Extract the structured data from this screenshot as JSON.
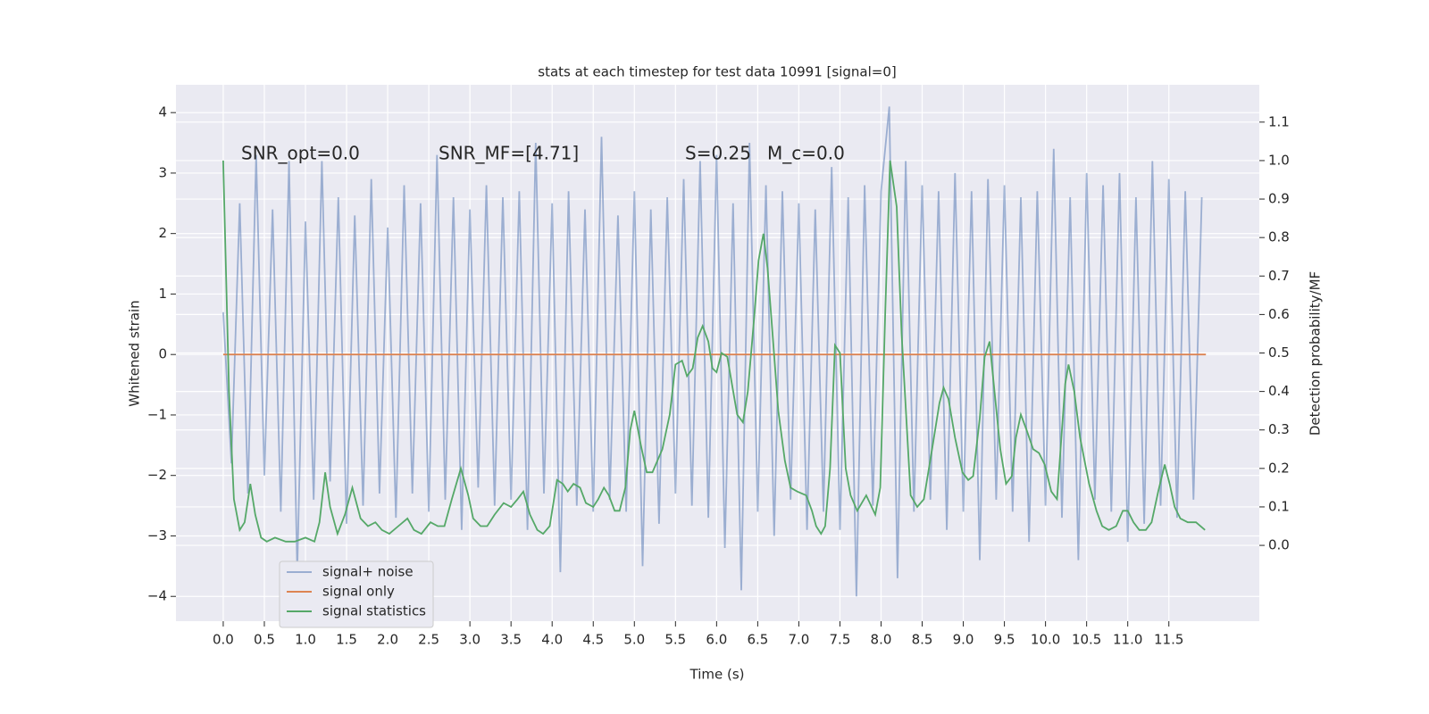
{
  "chart_data": {
    "type": "line",
    "title": "stats at each timestep for test data 10991 [signal=0]",
    "xlabel": "Time (s)",
    "ylabel": "Whitened strain",
    "y2label": "Detection probability/MF",
    "annotations": [
      "SNR_opt=0.0",
      "SNR_MF=[4.71]",
      "S=0.25",
      "M_c=0.0"
    ],
    "xlim": [
      -0.575,
      12.6
    ],
    "ylim": [
      -4.41,
      4.46
    ],
    "y2lim": [
      -0.197,
      1.197
    ],
    "xticks": [
      {
        "value": 0,
        "label": "0.0"
      },
      0.5,
      {
        "value": 1,
        "label": "1.0"
      },
      1.5,
      {
        "value": 2,
        "label": "2.0"
      },
      2.5,
      {
        "value": 3,
        "label": "3.0"
      },
      3.5,
      {
        "value": 4,
        "label": "4.0"
      },
      4.5,
      {
        "value": 5,
        "label": "5.0"
      },
      5.5,
      {
        "value": 6,
        "label": "6.0"
      },
      6.5,
      {
        "value": 7,
        "label": "7.0"
      },
      7.5,
      {
        "value": 8,
        "label": "8.0"
      },
      8.5,
      {
        "value": 9,
        "label": "9.0"
      },
      9.5,
      {
        "value": 10,
        "label": "10.0"
      },
      10.5,
      {
        "value": 11,
        "label": "11.0"
      },
      11.5
    ],
    "yticks": [
      {
        "value": -4,
        "label": "−4"
      },
      {
        "value": -3,
        "label": "−3"
      },
      {
        "value": -2,
        "label": "−2"
      },
      {
        "value": -1,
        "label": "−1"
      },
      0,
      1,
      2,
      3,
      4
    ],
    "y2ticks": [
      {
        "value": 0,
        "label": "0.0"
      },
      0.1,
      0.2,
      0.3,
      0.4,
      0.5,
      0.6,
      0.7,
      0.8,
      0.9,
      {
        "value": 1,
        "label": "1.0"
      },
      1.1
    ],
    "grid": true,
    "legend": "lower left",
    "series": [
      {
        "name": "signal+ noise",
        "color": "#4c72b0",
        "opacity": 0.5,
        "x": [
          0,
          0.1,
          0.2,
          0.3,
          0.4,
          0.5,
          0.6,
          0.7,
          0.8,
          0.9,
          1,
          1.1,
          1.2,
          1.3,
          1.4,
          1.5,
          1.6,
          1.7,
          1.8,
          1.9,
          2,
          2.1,
          2.2,
          2.3,
          2.4,
          2.5,
          2.6,
          2.7,
          2.8,
          2.9,
          3,
          3.1,
          3.2,
          3.3,
          3.4,
          3.5,
          3.6,
          3.7,
          3.8,
          3.9,
          4,
          4.1,
          4.2,
          4.3,
          4.4,
          4.5,
          4.6,
          4.7,
          4.8,
          4.9,
          5,
          5.1,
          5.2,
          5.3,
          5.4,
          5.5,
          5.6,
          5.7,
          5.8,
          5.9,
          6,
          6.1,
          6.2,
          6.3,
          6.4,
          6.5,
          6.6,
          6.7,
          6.8,
          6.9,
          7,
          7.1,
          7.2,
          7.3,
          7.4,
          7.5,
          7.6,
          7.7,
          7.8,
          7.9,
          8,
          8.1,
          8.2,
          8.3,
          8.4,
          8.5,
          8.6,
          8.7,
          8.8,
          8.9,
          9,
          9.1,
          9.2,
          9.3,
          9.4,
          9.5,
          9.6,
          9.7,
          9.8,
          9.9,
          10,
          10.1,
          10.2,
          10.3,
          10.4,
          10.5,
          10.6,
          10.7,
          10.8,
          10.9,
          11,
          11.1,
          11.2,
          11.3,
          11.4,
          11.5,
          11.6,
          11.7,
          11.8,
          11.9
        ],
        "values": [
          0.7,
          -1.8,
          2.5,
          -2.3,
          3.3,
          -2.0,
          2.4,
          -2.6,
          3.2,
          -3.6,
          2.2,
          -2.4,
          3.2,
          -2.1,
          2.6,
          -2.8,
          2.3,
          -2.5,
          2.9,
          -2.3,
          2.1,
          -2.7,
          2.8,
          -2.3,
          2.5,
          -2.6,
          3.3,
          -2.4,
          2.6,
          -2.9,
          2.4,
          -2.2,
          2.8,
          -2.5,
          2.6,
          -2.4,
          2.7,
          -2.9,
          3.5,
          -2.3,
          2.5,
          -3.6,
          2.7,
          -2.5,
          2.4,
          -2.6,
          3.6,
          -2.4,
          2.3,
          -2.6,
          2.7,
          -3.5,
          2.4,
          -2.8,
          2.6,
          -2.3,
          2.9,
          -2.5,
          3.2,
          -2.7,
          3.3,
          -3.2,
          2.5,
          -3.9,
          3.5,
          -2.6,
          2.8,
          -3.0,
          2.7,
          -2.4,
          2.5,
          -2.9,
          2.4,
          -2.6,
          3.1,
          -2.9,
          2.6,
          -4.0,
          2.8,
          -2.5,
          2.7,
          4.1,
          -3.7,
          3.2,
          -2.6,
          2.8,
          -2.4,
          2.7,
          -2.9,
          3.0,
          -2.6,
          2.7,
          -3.4,
          2.9,
          -2.4,
          2.8,
          -2.6,
          2.6,
          -3.1,
          2.7,
          -2.5,
          3.4,
          -2.7,
          2.6,
          -3.4,
          3.0,
          -2.4,
          2.8,
          -2.6,
          3.0,
          -3.1,
          2.6,
          -2.8,
          3.2,
          -2.5,
          2.9,
          -2.7,
          2.7,
          -2.4,
          2.6
        ]
      },
      {
        "name": "signal only",
        "color": "#dd8452",
        "x": [
          0,
          11.95
        ],
        "values": [
          0,
          0
        ]
      },
      {
        "name": "signal statistics",
        "color": "#55a868",
        "axis": "y2",
        "x": [
          0,
          0.07,
          0.13,
          0.2,
          0.26,
          0.33,
          0.39,
          0.46,
          0.53,
          0.63,
          0.76,
          0.87,
          1,
          1.11,
          1.17,
          1.24,
          1.3,
          1.39,
          1.48,
          1.57,
          1.67,
          1.76,
          1.85,
          1.93,
          2.02,
          2.13,
          2.24,
          2.32,
          2.41,
          2.52,
          2.61,
          2.69,
          2.78,
          2.89,
          2.98,
          3.04,
          3.13,
          3.21,
          3.3,
          3.41,
          3.5,
          3.58,
          3.65,
          3.73,
          3.82,
          3.89,
          3.97,
          4.06,
          4.13,
          4.19,
          4.26,
          4.34,
          4.41,
          4.5,
          4.56,
          4.63,
          4.69,
          4.76,
          4.82,
          4.89,
          4.95,
          5,
          5.08,
          5.15,
          5.22,
          5.34,
          5.43,
          5.5,
          5.58,
          5.64,
          5.71,
          5.77,
          5.83,
          5.9,
          5.95,
          6,
          6.06,
          6.13,
          6.25,
          6.32,
          6.38,
          6.46,
          6.51,
          6.57,
          6.62,
          6.68,
          6.75,
          6.83,
          6.9,
          6.98,
          7.09,
          7.16,
          7.21,
          7.27,
          7.32,
          7.38,
          7.44,
          7.5,
          7.57,
          7.63,
          7.71,
          7.82,
          7.93,
          7.99,
          8.05,
          8.11,
          8.19,
          8.25,
          8.36,
          8.44,
          8.52,
          8.62,
          8.71,
          8.76,
          8.82,
          8.9,
          8.99,
          9.06,
          9.12,
          9.2,
          9.26,
          9.32,
          9.38,
          9.45,
          9.52,
          9.59,
          9.64,
          9.7,
          9.77,
          9.85,
          9.92,
          9.99,
          10.07,
          10.14,
          10.2,
          10.24,
          10.28,
          10.35,
          10.42,
          10.53,
          10.62,
          10.69,
          10.77,
          10.86,
          10.94,
          11,
          11.07,
          11.14,
          11.22,
          11.29,
          11.37,
          11.45,
          11.51,
          11.57,
          11.64,
          11.73,
          11.83,
          11.94
        ],
        "values": [
          1.0,
          0.4,
          0.12,
          0.04,
          0.06,
          0.16,
          0.08,
          0.02,
          0.01,
          0.02,
          0.01,
          0.01,
          0.02,
          0.01,
          0.06,
          0.19,
          0.1,
          0.03,
          0.08,
          0.15,
          0.07,
          0.05,
          0.06,
          0.04,
          0.03,
          0.05,
          0.07,
          0.04,
          0.03,
          0.06,
          0.05,
          0.05,
          0.12,
          0.2,
          0.13,
          0.07,
          0.05,
          0.05,
          0.08,
          0.11,
          0.1,
          0.12,
          0.14,
          0.08,
          0.04,
          0.03,
          0.05,
          0.17,
          0.16,
          0.14,
          0.16,
          0.15,
          0.11,
          0.1,
          0.12,
          0.15,
          0.13,
          0.09,
          0.09,
          0.15,
          0.3,
          0.35,
          0.26,
          0.19,
          0.19,
          0.25,
          0.34,
          0.47,
          0.48,
          0.44,
          0.46,
          0.54,
          0.57,
          0.53,
          0.46,
          0.45,
          0.5,
          0.49,
          0.34,
          0.32,
          0.4,
          0.6,
          0.74,
          0.81,
          0.72,
          0.55,
          0.35,
          0.22,
          0.15,
          0.14,
          0.13,
          0.09,
          0.05,
          0.03,
          0.05,
          0.2,
          0.52,
          0.5,
          0.2,
          0.13,
          0.09,
          0.13,
          0.08,
          0.15,
          0.6,
          1.0,
          0.88,
          0.55,
          0.13,
          0.1,
          0.12,
          0.25,
          0.37,
          0.41,
          0.38,
          0.28,
          0.19,
          0.17,
          0.18,
          0.33,
          0.49,
          0.53,
          0.4,
          0.25,
          0.16,
          0.18,
          0.28,
          0.34,
          0.3,
          0.25,
          0.24,
          0.21,
          0.14,
          0.12,
          0.3,
          0.42,
          0.47,
          0.4,
          0.28,
          0.16,
          0.09,
          0.05,
          0.04,
          0.05,
          0.09,
          0.09,
          0.06,
          0.04,
          0.04,
          0.06,
          0.14,
          0.21,
          0.16,
          0.1,
          0.07,
          0.06,
          0.06,
          0.04
        ]
      }
    ]
  }
}
